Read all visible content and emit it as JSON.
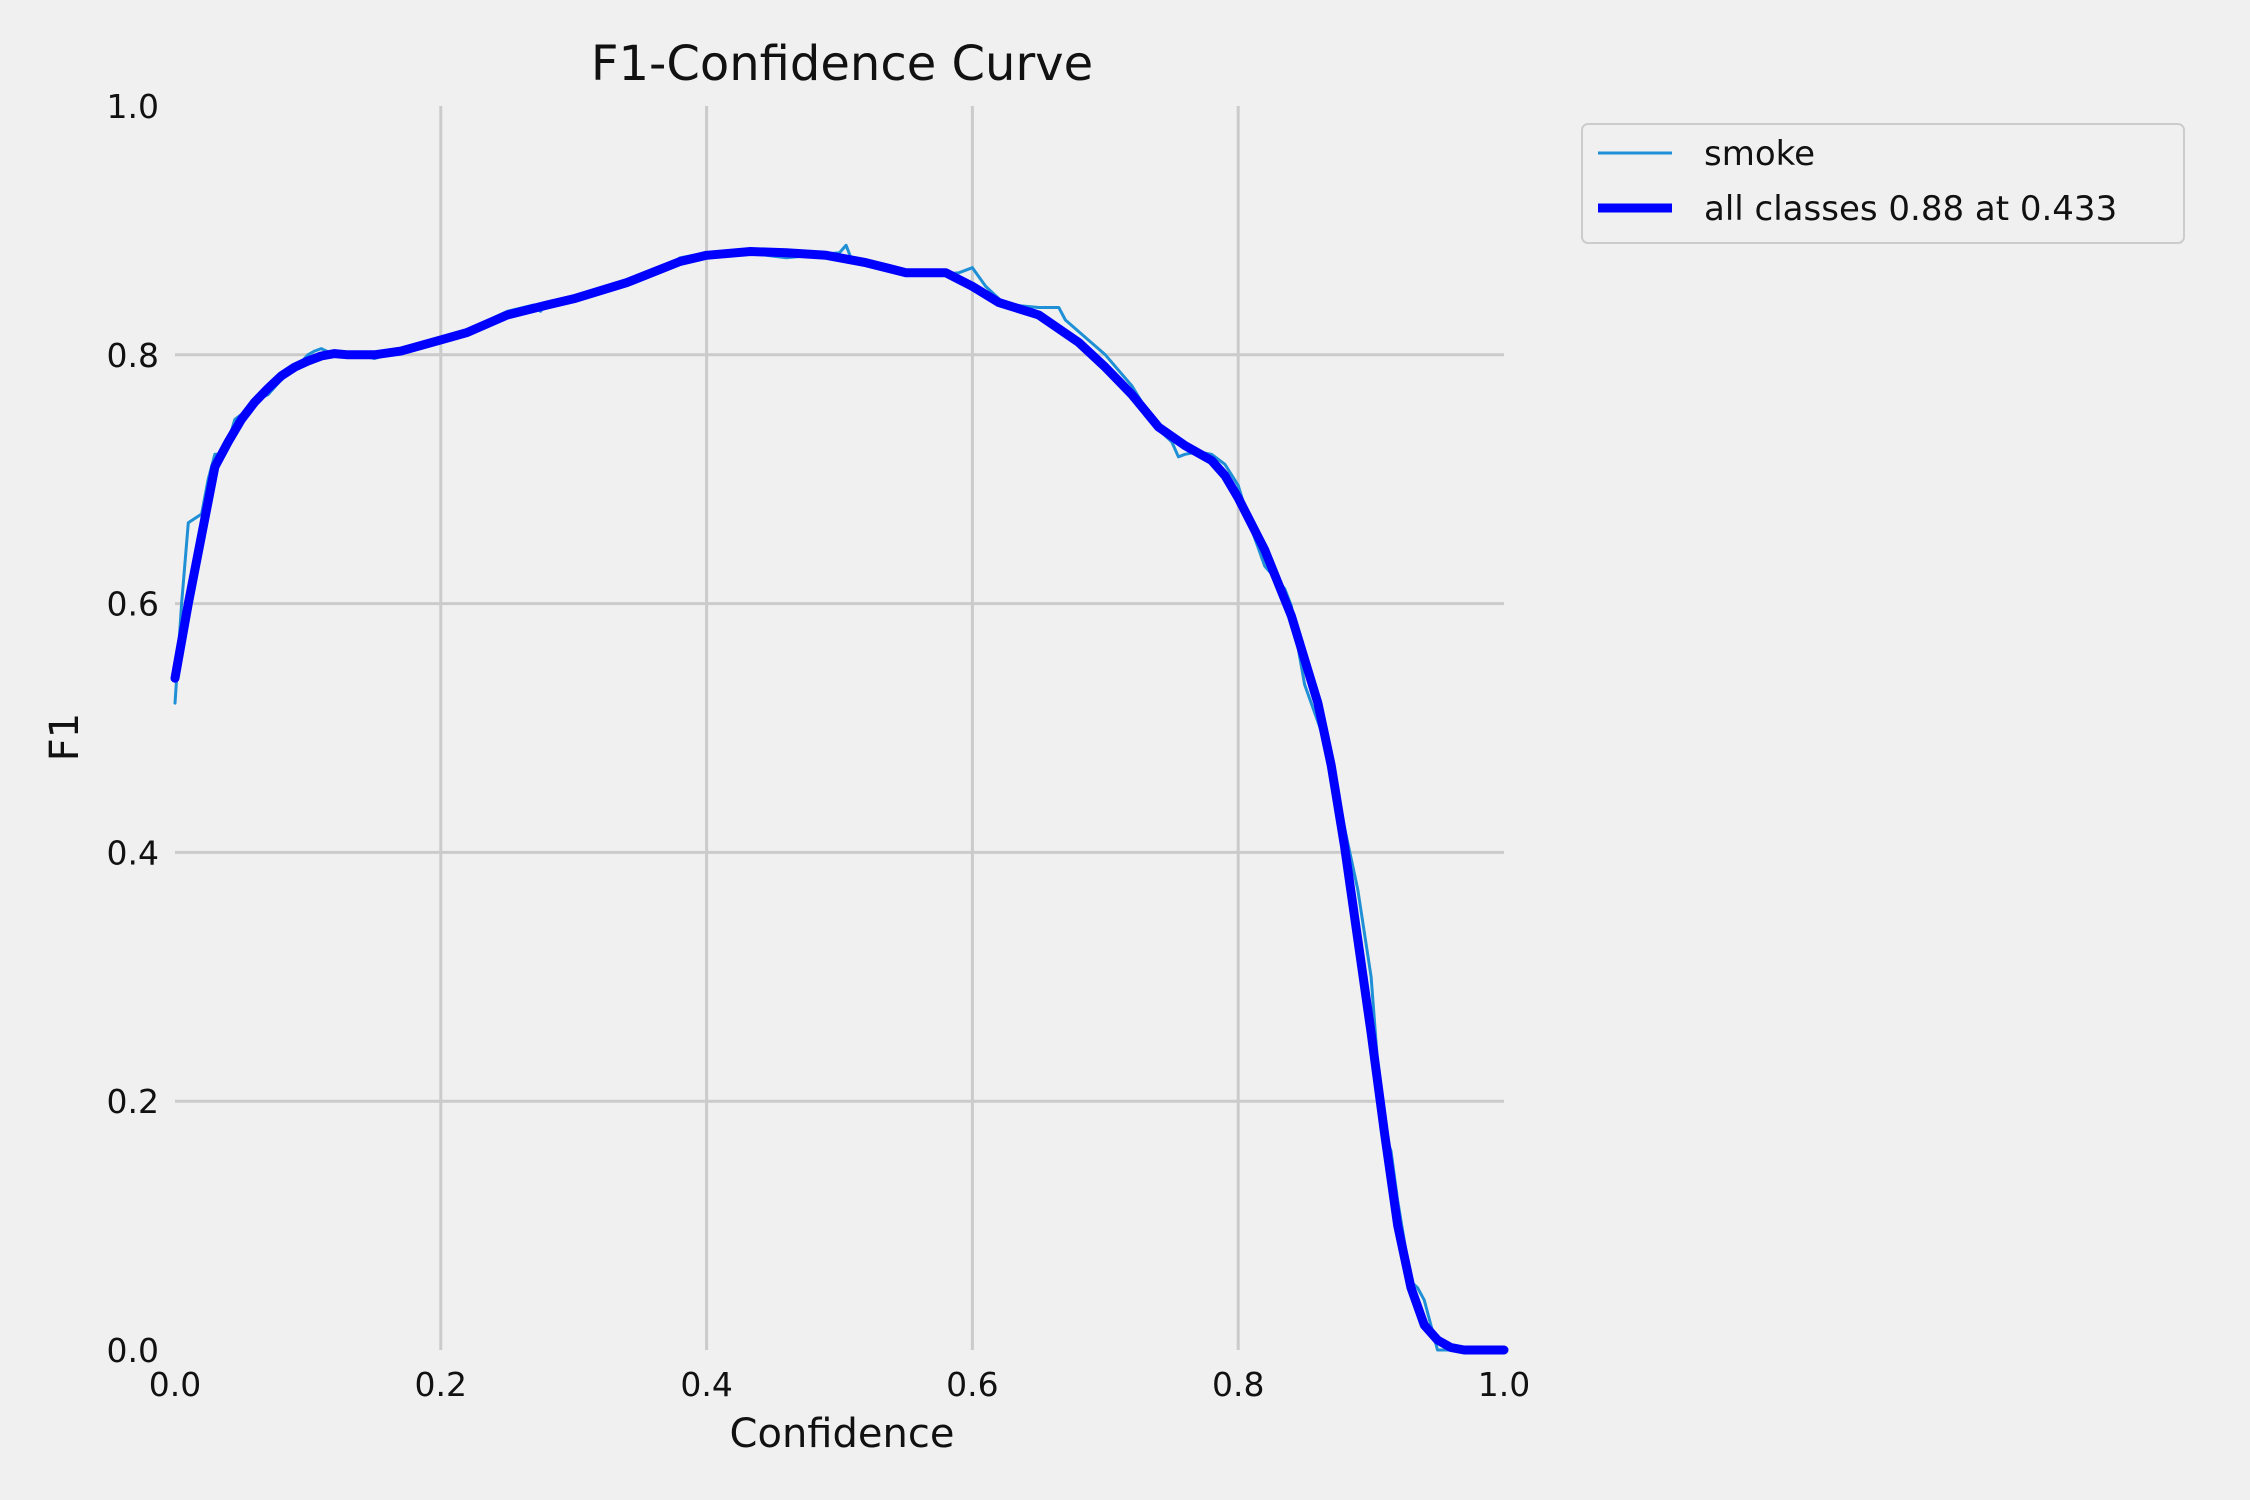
{
  "chart_data": {
    "type": "line",
    "title": "F1-Confidence Curve",
    "xlabel": "Confidence",
    "ylabel": "F1",
    "xlim": [
      0,
      1
    ],
    "ylim": [
      0,
      1
    ],
    "xticks": [
      "0.0",
      "0.2",
      "0.4",
      "0.6",
      "0.8",
      "1.0"
    ],
    "yticks": [
      "0.0",
      "0.2",
      "0.4",
      "0.6",
      "0.8",
      "1.0"
    ],
    "grid": true,
    "legend_position": "outside-top-right",
    "series": [
      {
        "name": "smoke",
        "color": "#1f8fd6",
        "style": "thin",
        "x": [
          0.0,
          0.005,
          0.01,
          0.02,
          0.025,
          0.03,
          0.035,
          0.04,
          0.045,
          0.05,
          0.06,
          0.07,
          0.08,
          0.09,
          0.1,
          0.105,
          0.11,
          0.12,
          0.13,
          0.14,
          0.15,
          0.16,
          0.17,
          0.18,
          0.2,
          0.22,
          0.25,
          0.27,
          0.275,
          0.28,
          0.3,
          0.32,
          0.35,
          0.37,
          0.38,
          0.4,
          0.43,
          0.46,
          0.48,
          0.5,
          0.505,
          0.51,
          0.52,
          0.53,
          0.55,
          0.57,
          0.59,
          0.6,
          0.61,
          0.62,
          0.625,
          0.63,
          0.65,
          0.665,
          0.67,
          0.7,
          0.72,
          0.74,
          0.75,
          0.755,
          0.76,
          0.77,
          0.78,
          0.79,
          0.8,
          0.81,
          0.82,
          0.83,
          0.835,
          0.84,
          0.845,
          0.85,
          0.86,
          0.87,
          0.88,
          0.89,
          0.9,
          0.905,
          0.91,
          0.915,
          0.92,
          0.93,
          0.935,
          0.94,
          0.95,
          0.96,
          1.0
        ],
        "y": [
          0.52,
          0.6,
          0.665,
          0.672,
          0.7,
          0.72,
          0.72,
          0.73,
          0.748,
          0.752,
          0.763,
          0.768,
          0.78,
          0.788,
          0.8,
          0.803,
          0.805,
          0.8,
          0.8,
          0.8,
          0.797,
          0.8,
          0.803,
          0.807,
          0.814,
          0.82,
          0.835,
          0.84,
          0.835,
          0.842,
          0.845,
          0.852,
          0.86,
          0.87,
          0.878,
          0.882,
          0.882,
          0.878,
          0.88,
          0.882,
          0.888,
          0.874,
          0.876,
          0.87,
          0.868,
          0.864,
          0.866,
          0.87,
          0.855,
          0.845,
          0.838,
          0.84,
          0.838,
          0.838,
          0.828,
          0.8,
          0.775,
          0.74,
          0.73,
          0.718,
          0.72,
          0.722,
          0.72,
          0.712,
          0.695,
          0.66,
          0.63,
          0.618,
          0.612,
          0.598,
          0.565,
          0.535,
          0.505,
          0.475,
          0.42,
          0.37,
          0.3,
          0.23,
          0.175,
          0.16,
          0.12,
          0.055,
          0.05,
          0.04,
          0.0,
          0.0,
          0.0
        ]
      },
      {
        "name": "all classes 0.88 at 0.433",
        "color": "#0000ff",
        "style": "thick",
        "x": [
          0.0,
          0.01,
          0.02,
          0.03,
          0.04,
          0.05,
          0.06,
          0.07,
          0.08,
          0.09,
          0.1,
          0.11,
          0.12,
          0.13,
          0.15,
          0.17,
          0.2,
          0.22,
          0.25,
          0.28,
          0.3,
          0.34,
          0.38,
          0.4,
          0.433,
          0.46,
          0.49,
          0.52,
          0.55,
          0.58,
          0.6,
          0.62,
          0.65,
          0.68,
          0.7,
          0.72,
          0.74,
          0.76,
          0.78,
          0.79,
          0.8,
          0.82,
          0.84,
          0.86,
          0.87,
          0.88,
          0.89,
          0.9,
          0.91,
          0.92,
          0.93,
          0.94,
          0.95,
          0.96,
          0.97,
          1.0
        ],
        "y": [
          0.54,
          0.6,
          0.655,
          0.71,
          0.73,
          0.748,
          0.762,
          0.773,
          0.783,
          0.79,
          0.795,
          0.799,
          0.801,
          0.8,
          0.8,
          0.803,
          0.812,
          0.818,
          0.832,
          0.84,
          0.845,
          0.858,
          0.875,
          0.88,
          0.883,
          0.882,
          0.88,
          0.874,
          0.866,
          0.866,
          0.855,
          0.842,
          0.832,
          0.81,
          0.79,
          0.768,
          0.742,
          0.727,
          0.715,
          0.703,
          0.685,
          0.643,
          0.59,
          0.52,
          0.47,
          0.405,
          0.33,
          0.255,
          0.175,
          0.1,
          0.05,
          0.02,
          0.008,
          0.002,
          0.0,
          0.0
        ]
      }
    ]
  }
}
